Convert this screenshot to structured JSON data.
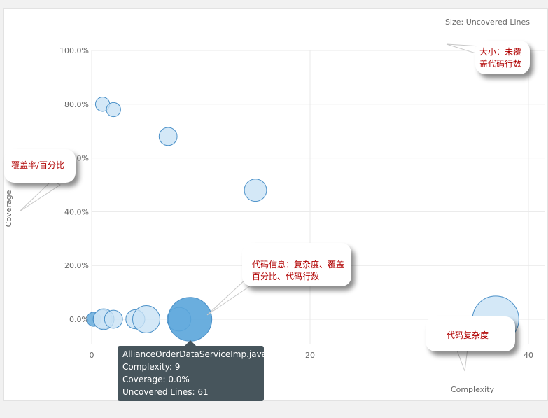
{
  "chart_data": {
    "type": "scatter",
    "size_label": "Size: Uncovered Lines",
    "xlabel": "Complexity",
    "ylabel": "Coverage",
    "xlim": [
      0,
      40
    ],
    "ylim": [
      0,
      100
    ],
    "x_ticks": [
      {
        "value": 0,
        "label": "0"
      },
      {
        "value": 20,
        "label": "20"
      },
      {
        "value": 40,
        "label": "40"
      }
    ],
    "y_ticks": [
      {
        "value": 0,
        "label": "0.0%"
      },
      {
        "value": 20,
        "label": "20.0%"
      },
      {
        "value": 40,
        "label": "40.0%"
      },
      {
        "value": 60,
        "label": "60.0%"
      },
      {
        "value": 80,
        "label": "80.0%"
      },
      {
        "value": 100,
        "label": "100.0%"
      }
    ],
    "points": [
      {
        "x": 0.2,
        "y": 0,
        "size": 2,
        "highlight": false,
        "solid": true
      },
      {
        "x": 1,
        "y": 0,
        "size": 6,
        "highlight": false
      },
      {
        "x": 1.1,
        "y": 0,
        "size": 8,
        "highlight": false
      },
      {
        "x": 2,
        "y": 0,
        "size": 5,
        "highlight": false
      },
      {
        "x": 4,
        "y": 0,
        "size": 6,
        "highlight": false
      },
      {
        "x": 5,
        "y": 0,
        "size": 18,
        "highlight": false
      },
      {
        "x": 8,
        "y": 0,
        "size": 12,
        "highlight": false
      },
      {
        "x": 9,
        "y": 0,
        "size": 61,
        "highlight": true
      },
      {
        "x": 1,
        "y": 80,
        "size": 2,
        "highlight": false
      },
      {
        "x": 2,
        "y": 78,
        "size": 2,
        "highlight": false
      },
      {
        "x": 7,
        "y": 68,
        "size": 5,
        "highlight": false
      },
      {
        "x": 15,
        "y": 48,
        "size": 10,
        "highlight": false
      },
      {
        "x": 37,
        "y": 0,
        "size": 70,
        "highlight": false
      }
    ],
    "colors": {
      "fill": "#c9e2f5",
      "stroke": "#4a90c8",
      "highlight_fill": "#5aa5da",
      "grid": "#e8e8e8",
      "axis_text": "#666666"
    }
  },
  "tooltip": {
    "name": "AllianceOrderDataServiceImp.java",
    "complexity": "Complexity: 9",
    "coverage": "Coverage: 0.0%",
    "uncovered": "Uncovered Lines: 61"
  },
  "annotations": {
    "size": "大小：未覆盖代码行数",
    "coverage": "覆盖率/百分比",
    "info": "代码信息：复杂度、覆盖百分比、代码行数",
    "complexity": "代码复杂度"
  }
}
